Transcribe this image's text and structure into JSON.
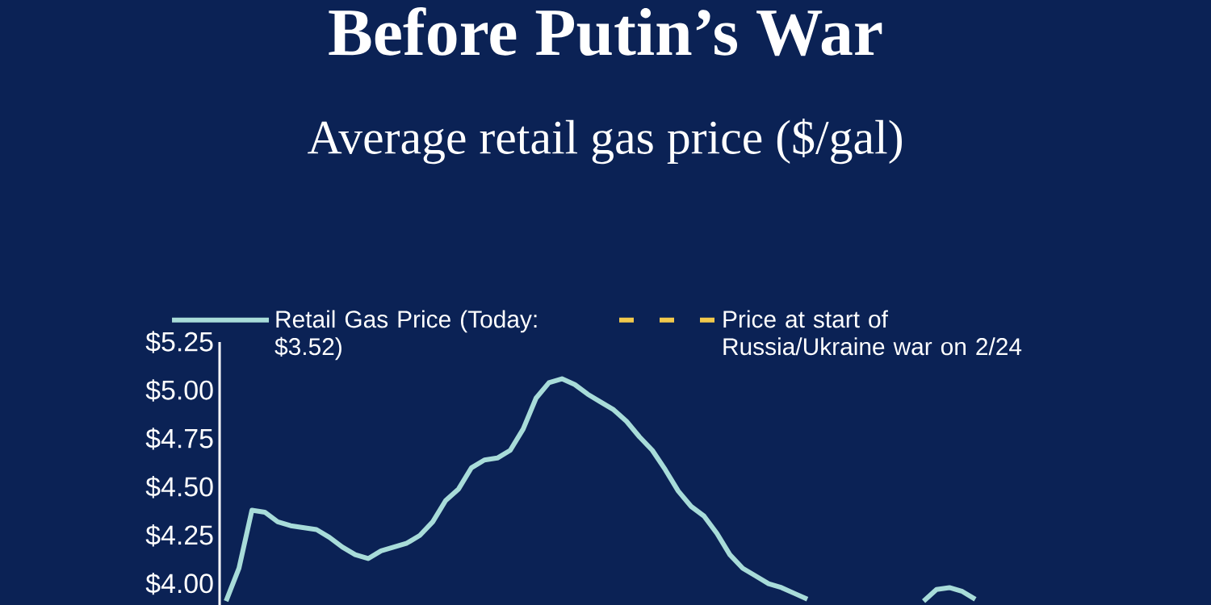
{
  "chart_data": {
    "type": "line",
    "title": "Before Putin’s War",
    "subtitle": "Average retail gas price ($/gal)",
    "categories": [
      null,
      null,
      null,
      null,
      null,
      null,
      null,
      null,
      null,
      null,
      null,
      null,
      null,
      null,
      null,
      null,
      null,
      null,
      null,
      null,
      null,
      null,
      null,
      null,
      null,
      null,
      null,
      null,
      null,
      null,
      null,
      null,
      null,
      null,
      null,
      null,
      null,
      null,
      null,
      null,
      null,
      null,
      null,
      null,
      null,
      null,
      null,
      null,
      null,
      null,
      null,
      null,
      null,
      null,
      null,
      null,
      null,
      null,
      null
    ],
    "series": [
      {
        "name": "Retail Gas Price (Today: $3.52)",
        "color": "#a8dcd9",
        "line_style": "solid",
        "values": [
          3.91,
          4.08,
          4.38,
          4.37,
          4.32,
          4.3,
          4.29,
          4.28,
          4.24,
          4.19,
          4.15,
          4.13,
          4.17,
          4.19,
          4.21,
          4.25,
          4.32,
          4.43,
          4.49,
          4.6,
          4.64,
          4.65,
          4.69,
          4.8,
          4.96,
          5.04,
          5.06,
          5.03,
          4.98,
          4.94,
          4.9,
          4.84,
          4.76,
          4.69,
          4.59,
          4.48,
          4.4,
          4.35,
          4.26,
          4.15,
          4.08,
          4.04,
          4.0,
          3.98,
          3.95,
          3.92,
          null,
          null,
          null,
          null,
          null,
          null,
          null,
          null,
          null,
          null,
          null,
          null,
          null
        ]
      },
      {
        "color": "#a8dcd9",
        "line_style": "solid",
        "values": [
          null,
          null,
          null,
          null,
          null,
          null,
          null,
          null,
          null,
          null,
          null,
          null,
          null,
          null,
          null,
          null,
          null,
          null,
          null,
          null,
          null,
          null,
          null,
          null,
          null,
          null,
          null,
          null,
          null,
          null,
          null,
          null,
          null,
          null,
          null,
          null,
          null,
          null,
          null,
          null,
          null,
          null,
          null,
          null,
          null,
          null,
          null,
          null,
          null,
          null,
          null,
          null,
          null,
          null,
          3.91,
          3.97,
          3.98,
          3.96,
          3.92
        ]
      },
      {
        "name": "Price at start of Russia/Ukraine war on 2/24",
        "color": "#f2c94c",
        "line_style": "dashed",
        "values": [
          null,
          null,
          null,
          null,
          null,
          null,
          null,
          null,
          null,
          null,
          null,
          null,
          null,
          null,
          null,
          null,
          null,
          null,
          null,
          null,
          null,
          null,
          null,
          null,
          null,
          null,
          null,
          null,
          null,
          null,
          null,
          null,
          null,
          null,
          null,
          null,
          null,
          null,
          null,
          null,
          null,
          null,
          null,
          null,
          null,
          null,
          null,
          null,
          null,
          null,
          null,
          null,
          null,
          null,
          null,
          null,
          null,
          null,
          null
        ]
      }
    ],
    "ylim": [
      3.89,
      5.25
    ],
    "yticks": [
      {
        "value": 4.0,
        "label": "$4.00"
      },
      {
        "value": 4.25,
        "label": "$4.25"
      },
      {
        "value": 4.5,
        "label": "$4.50"
      },
      {
        "value": 4.75,
        "label": "$4.75"
      },
      {
        "value": 5.0,
        "label": "$5.00"
      },
      {
        "value": 5.25,
        "label": "$5.25"
      }
    ],
    "tick_labels": "y",
    "grid": false,
    "legend": "top",
    "marker": "none"
  }
}
